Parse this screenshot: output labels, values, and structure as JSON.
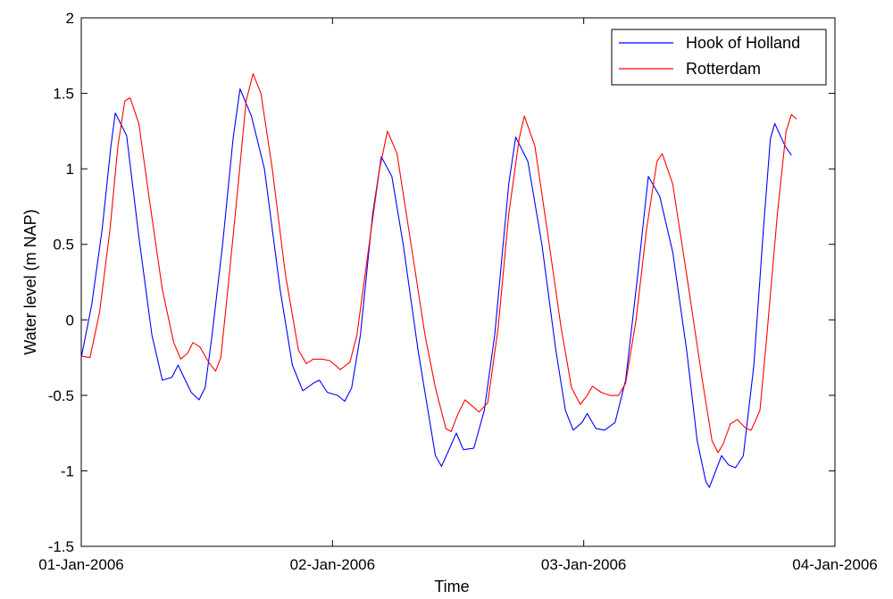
{
  "chart_data": {
    "type": "line",
    "xlabel": "Time",
    "ylabel": "Water level (m NAP)",
    "xlim": [
      "2006-01-01T00:00",
      "2006-01-04T00:00"
    ],
    "ylim": [
      -1.5,
      2
    ],
    "yticks": [
      -1.5,
      -1,
      -0.5,
      0,
      0.5,
      1,
      1.5,
      2
    ],
    "ytick_labels": [
      "-1.5",
      "-1",
      "-0.5",
      "0",
      "0.5",
      "1",
      "1.5",
      "2"
    ],
    "xticks": [
      "2006-01-01T00:00",
      "2006-01-02T00:00",
      "2006-01-03T00:00",
      "2006-01-04T00:00"
    ],
    "xtick_labels": [
      "01-Jan-2006",
      "02-Jan-2006",
      "03-Jan-2006",
      "04-Jan-2006"
    ],
    "grid": false,
    "legend_position": "top-right",
    "series": [
      {
        "name": "Hook of Holland",
        "color": "#0000ff",
        "points": [
          [
            "2006-01-01T00:00",
            -0.25
          ],
          [
            "2006-01-01T01:00",
            0.1
          ],
          [
            "2006-01-01T02:00",
            0.6
          ],
          [
            "2006-01-01T02:50",
            1.15
          ],
          [
            "2006-01-01T03:15",
            1.37
          ],
          [
            "2006-01-01T04:20",
            1.22
          ],
          [
            "2006-01-01T05:30",
            0.55
          ],
          [
            "2006-01-01T06:45",
            -0.1
          ],
          [
            "2006-01-01T07:45",
            -0.4
          ],
          [
            "2006-01-01T08:40",
            -0.38
          ],
          [
            "2006-01-01T09:15",
            -0.3
          ],
          [
            "2006-01-01T10:30",
            -0.48
          ],
          [
            "2006-01-01T11:15",
            -0.53
          ],
          [
            "2006-01-01T11:50",
            -0.45
          ],
          [
            "2006-01-01T12:30",
            -0.1
          ],
          [
            "2006-01-01T13:30",
            0.5
          ],
          [
            "2006-01-01T14:30",
            1.2
          ],
          [
            "2006-01-01T15:10",
            1.53
          ],
          [
            "2006-01-01T16:15",
            1.35
          ],
          [
            "2006-01-01T17:30",
            1.0
          ],
          [
            "2006-01-01T19:00",
            0.2
          ],
          [
            "2006-01-01T20:10",
            -0.3
          ],
          [
            "2006-01-01T21:10",
            -0.47
          ],
          [
            "2006-01-01T22:10",
            -0.42
          ],
          [
            "2006-01-01T22:45",
            -0.4
          ],
          [
            "2006-01-01T23:30",
            -0.48
          ],
          [
            "2006-01-02T00:30",
            -0.5
          ],
          [
            "2006-01-02T01:10",
            -0.54
          ],
          [
            "2006-01-02T01:50",
            -0.45
          ],
          [
            "2006-01-02T02:40",
            -0.1
          ],
          [
            "2006-01-02T03:50",
            0.7
          ],
          [
            "2006-01-02T04:40",
            1.08
          ],
          [
            "2006-01-02T05:40",
            0.95
          ],
          [
            "2006-01-02T06:45",
            0.5
          ],
          [
            "2006-01-02T08:10",
            -0.2
          ],
          [
            "2006-01-02T09:00",
            -0.55
          ],
          [
            "2006-01-02T09:50",
            -0.9
          ],
          [
            "2006-01-02T10:25",
            -0.97
          ],
          [
            "2006-01-02T11:00",
            -0.88
          ],
          [
            "2006-01-02T11:50",
            -0.75
          ],
          [
            "2006-01-02T12:30",
            -0.86
          ],
          [
            "2006-01-02T13:30",
            -0.85
          ],
          [
            "2006-01-02T14:30",
            -0.6
          ],
          [
            "2006-01-02T15:30",
            -0.1
          ],
          [
            "2006-01-02T16:50",
            0.9
          ],
          [
            "2006-01-02T17:30",
            1.21
          ],
          [
            "2006-01-02T18:40",
            1.05
          ],
          [
            "2006-01-02T20:00",
            0.5
          ],
          [
            "2006-01-02T21:20",
            -0.2
          ],
          [
            "2006-01-02T22:15",
            -0.6
          ],
          [
            "2006-01-02T23:00",
            -0.73
          ],
          [
            "2006-01-02T23:50",
            -0.68
          ],
          [
            "2006-01-03T00:20",
            -0.62
          ],
          [
            "2006-01-03T01:10",
            -0.72
          ],
          [
            "2006-01-03T02:00",
            -0.73
          ],
          [
            "2006-01-03T03:00",
            -0.68
          ],
          [
            "2006-01-03T04:00",
            -0.4
          ],
          [
            "2006-01-03T05:10",
            0.3
          ],
          [
            "2006-01-03T06:10",
            0.95
          ],
          [
            "2006-01-03T07:15",
            0.82
          ],
          [
            "2006-01-03T08:30",
            0.45
          ],
          [
            "2006-01-03T09:50",
            -0.2
          ],
          [
            "2006-01-03T10:50",
            -0.8
          ],
          [
            "2006-01-03T11:40",
            -1.07
          ],
          [
            "2006-01-03T12:00",
            -1.11
          ],
          [
            "2006-01-03T12:30",
            -1.02
          ],
          [
            "2006-01-03T13:10",
            -0.9
          ],
          [
            "2006-01-03T13:50",
            -0.96
          ],
          [
            "2006-01-03T14:30",
            -0.98
          ],
          [
            "2006-01-03T15:15",
            -0.9
          ],
          [
            "2006-01-03T16:15",
            -0.3
          ],
          [
            "2006-01-03T17:10",
            0.6
          ],
          [
            "2006-01-03T17:50",
            1.2
          ],
          [
            "2006-01-03T18:15",
            1.3
          ],
          [
            "2006-01-03T19:15",
            1.15
          ],
          [
            "2006-01-03T19:50",
            1.09
          ]
        ]
      },
      {
        "name": "Rotterdam",
        "color": "#ff0000",
        "points": [
          [
            "2006-01-01T00:00",
            -0.24
          ],
          [
            "2006-01-01T00:50",
            -0.25
          ],
          [
            "2006-01-01T01:45",
            0.05
          ],
          [
            "2006-01-01T02:45",
            0.6
          ],
          [
            "2006-01-01T03:30",
            1.15
          ],
          [
            "2006-01-01T04:10",
            1.45
          ],
          [
            "2006-01-01T04:40",
            1.47
          ],
          [
            "2006-01-01T05:30",
            1.3
          ],
          [
            "2006-01-01T06:30",
            0.8
          ],
          [
            "2006-01-01T07:45",
            0.2
          ],
          [
            "2006-01-01T08:50",
            -0.15
          ],
          [
            "2006-01-01T09:30",
            -0.26
          ],
          [
            "2006-01-01T10:10",
            -0.22
          ],
          [
            "2006-01-01T10:40",
            -0.15
          ],
          [
            "2006-01-01T11:20",
            -0.18
          ],
          [
            "2006-01-01T12:10",
            -0.28
          ],
          [
            "2006-01-01T12:50",
            -0.34
          ],
          [
            "2006-01-01T13:20",
            -0.25
          ],
          [
            "2006-01-01T14:00",
            0.2
          ],
          [
            "2006-01-01T15:00",
            0.9
          ],
          [
            "2006-01-01T15:45",
            1.45
          ],
          [
            "2006-01-01T16:25",
            1.63
          ],
          [
            "2006-01-01T17:10",
            1.5
          ],
          [
            "2006-01-01T18:15",
            1.0
          ],
          [
            "2006-01-01T19:30",
            0.3
          ],
          [
            "2006-01-01T20:45",
            -0.2
          ],
          [
            "2006-01-01T21:30",
            -0.29
          ],
          [
            "2006-01-01T22:10",
            -0.26
          ],
          [
            "2006-01-01T23:00",
            -0.26
          ],
          [
            "2006-01-01T23:45",
            -0.27
          ],
          [
            "2006-01-02T00:45",
            -0.33
          ],
          [
            "2006-01-02T01:40",
            -0.28
          ],
          [
            "2006-01-02T02:20",
            -0.1
          ],
          [
            "2006-01-02T03:30",
            0.5
          ],
          [
            "2006-01-02T04:30",
            1.0
          ],
          [
            "2006-01-02T05:15",
            1.25
          ],
          [
            "2006-01-02T06:10",
            1.1
          ],
          [
            "2006-01-02T07:30",
            0.5
          ],
          [
            "2006-01-02T08:50",
            -0.1
          ],
          [
            "2006-01-02T09:50",
            -0.45
          ],
          [
            "2006-01-02T10:50",
            -0.72
          ],
          [
            "2006-01-02T11:20",
            -0.74
          ],
          [
            "2006-01-02T12:00",
            -0.62
          ],
          [
            "2006-01-02T12:40",
            -0.53
          ],
          [
            "2006-01-02T13:20",
            -0.57
          ],
          [
            "2006-01-02T14:00",
            -0.61
          ],
          [
            "2006-01-02T14:50",
            -0.55
          ],
          [
            "2006-01-02T15:50",
            -0.05
          ],
          [
            "2006-01-02T16:50",
            0.7
          ],
          [
            "2006-01-02T17:50",
            1.2
          ],
          [
            "2006-01-02T18:20",
            1.35
          ],
          [
            "2006-01-02T19:20",
            1.15
          ],
          [
            "2006-01-02T20:30",
            0.6
          ],
          [
            "2006-01-02T21:50",
            -0.05
          ],
          [
            "2006-01-02T22:50",
            -0.45
          ],
          [
            "2006-01-02T23:40",
            -0.56
          ],
          [
            "2006-01-03T00:20",
            -0.5
          ],
          [
            "2006-01-03T00:50",
            -0.44
          ],
          [
            "2006-01-03T01:40",
            -0.48
          ],
          [
            "2006-01-03T02:30",
            -0.5
          ],
          [
            "2006-01-03T03:20",
            -0.5
          ],
          [
            "2006-01-03T04:00",
            -0.42
          ],
          [
            "2006-01-03T05:00",
            0.0
          ],
          [
            "2006-01-03T06:00",
            0.6
          ],
          [
            "2006-01-03T07:00",
            1.05
          ],
          [
            "2006-01-03T07:30",
            1.1
          ],
          [
            "2006-01-03T08:30",
            0.9
          ],
          [
            "2006-01-03T09:50",
            0.3
          ],
          [
            "2006-01-03T11:20",
            -0.4
          ],
          [
            "2006-01-03T12:15",
            -0.8
          ],
          [
            "2006-01-03T12:50",
            -0.88
          ],
          [
            "2006-01-03T13:20",
            -0.82
          ],
          [
            "2006-01-03T14:00",
            -0.69
          ],
          [
            "2006-01-03T14:40",
            -0.66
          ],
          [
            "2006-01-03T15:30",
            -0.72
          ],
          [
            "2006-01-03T16:00",
            -0.73
          ],
          [
            "2006-01-03T16:50",
            -0.6
          ],
          [
            "2006-01-03T17:30",
            -0.1
          ],
          [
            "2006-01-03T18:30",
            0.7
          ],
          [
            "2006-01-03T19:20",
            1.25
          ],
          [
            "2006-01-03T19:50",
            1.36
          ],
          [
            "2006-01-03T20:20",
            1.33
          ]
        ]
      }
    ]
  }
}
